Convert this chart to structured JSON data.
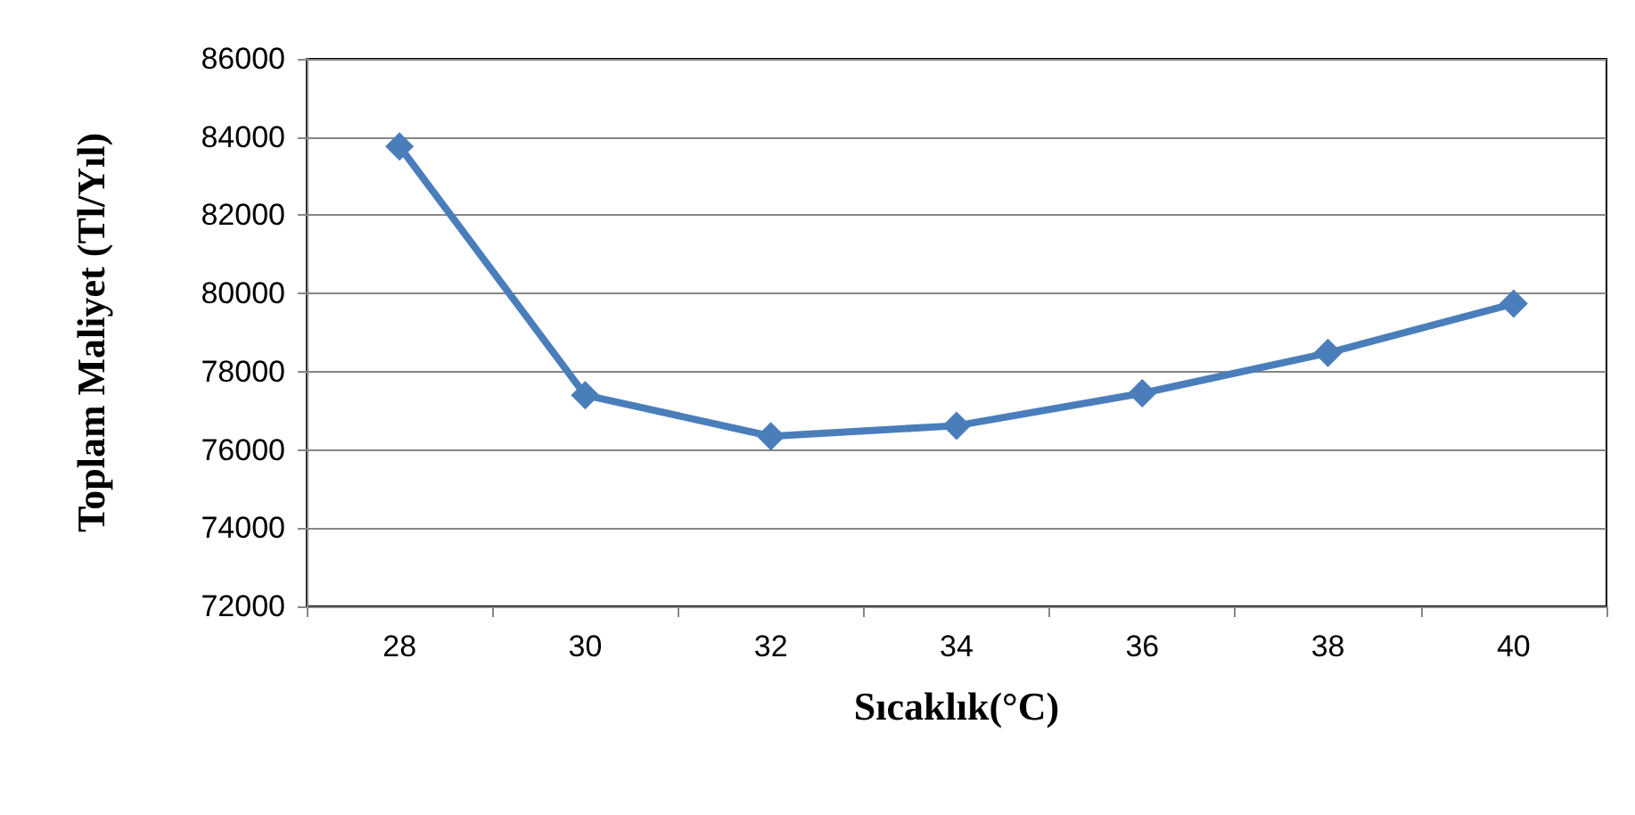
{
  "chart_data": {
    "type": "line",
    "xlabel": "Sıcaklık(°C)",
    "ylabel": "Toplam Maliyet (Tl/Yıl)",
    "categories": [
      "28",
      "30",
      "32",
      "34",
      "36",
      "38",
      "40"
    ],
    "series": [
      {
        "color": "#4a7ebb",
        "values": [
          83760,
          77400,
          76350,
          76620,
          77450,
          78480,
          79740
        ]
      }
    ],
    "ylim": [
      72000,
      86000
    ],
    "yticks": [
      72000,
      74000,
      76000,
      78000,
      80000,
      82000,
      84000,
      86000
    ],
    "grid": "y",
    "marker": "diamond",
    "line_style": "solid"
  }
}
